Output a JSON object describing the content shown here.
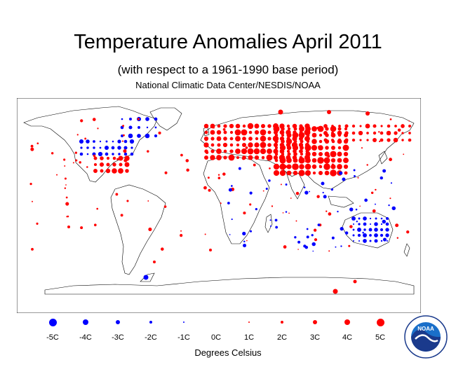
{
  "header": {
    "title": "Temperature Anomalies April 2011",
    "subtitle": "(with respect to a 1961-1990 base period)",
    "source": "National Climatic Data Center/NESDIS/NOAA"
  },
  "legend": {
    "axis_title": "Degrees Celsius",
    "items": [
      {
        "label": "-5C",
        "value": -5
      },
      {
        "label": "-4C",
        "value": -4
      },
      {
        "label": "-3C",
        "value": -3
      },
      {
        "label": "-2C",
        "value": -2
      },
      {
        "label": "-1C",
        "value": -1
      },
      {
        "label": "0C",
        "value": 0
      },
      {
        "label": "1C",
        "value": 1
      },
      {
        "label": "2C",
        "value": 2
      },
      {
        "label": "3C",
        "value": 3
      },
      {
        "label": "4C",
        "value": 4
      },
      {
        "label": "5C",
        "value": 5
      }
    ],
    "colors": {
      "warm": "#ff0000",
      "cold": "#0000ff"
    }
  },
  "logo": {
    "text": "NOAA",
    "ring_text": "NATIONAL OCEANIC AND ATMOSPHERIC ADMINISTRATION"
  }
}
